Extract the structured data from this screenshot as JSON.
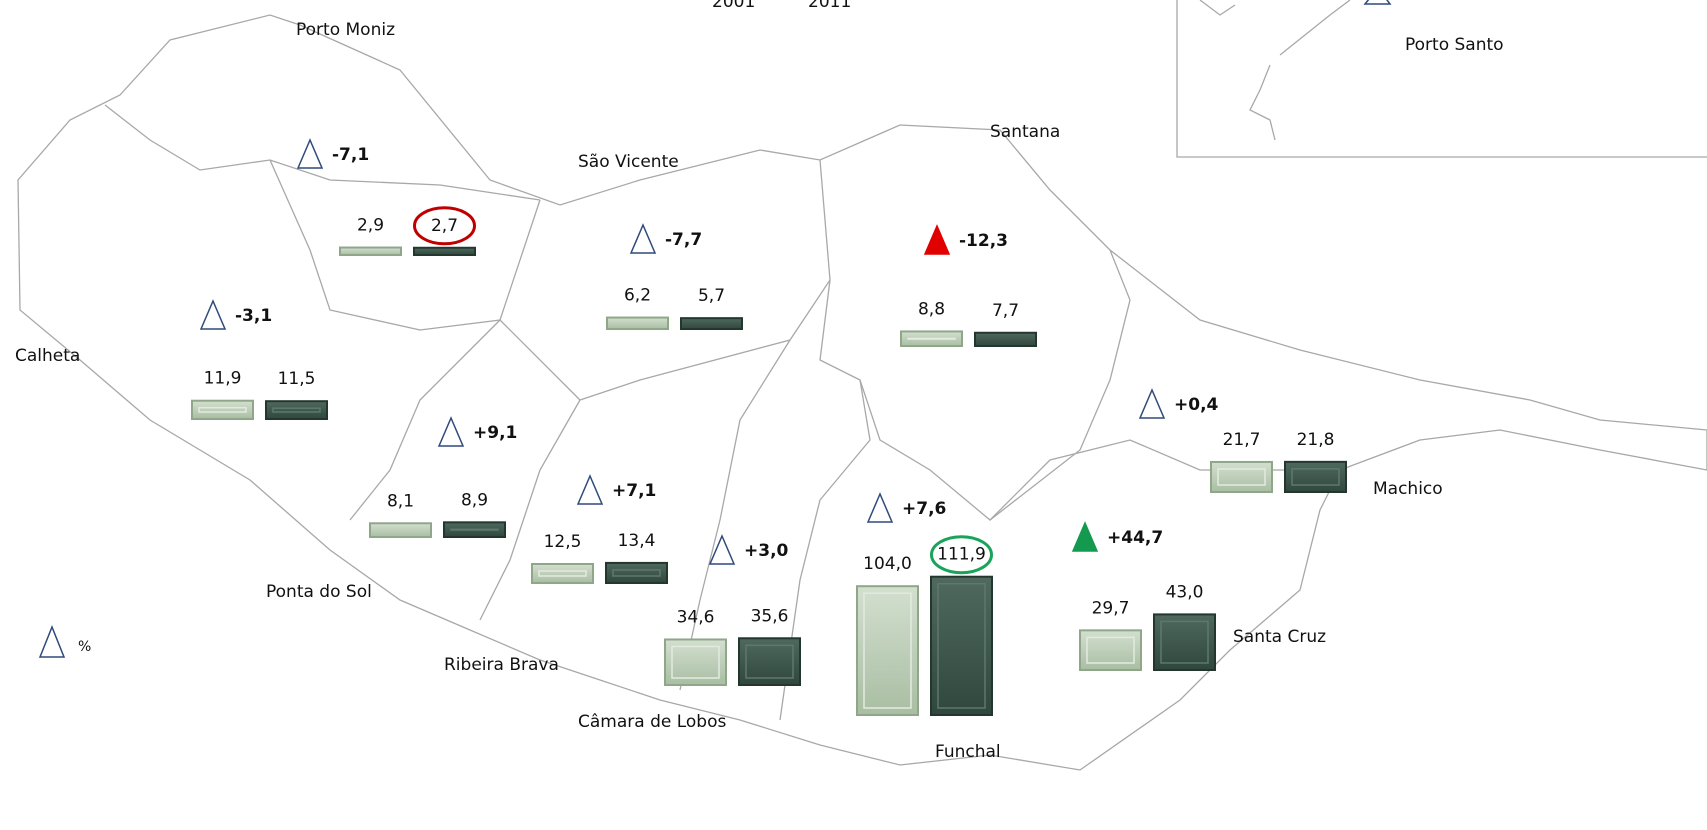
{
  "legend": {
    "years": [
      "2001",
      "2011"
    ],
    "unit": "%"
  },
  "inset": {
    "name": "Porto Santo"
  },
  "municipalities": [
    {
      "name": "Porto Moniz",
      "v2001": {
        "value": 2.9,
        "label": "2,9"
      },
      "v2011": {
        "value": 2.7,
        "label": "2,7"
      },
      "delta": {
        "value": -7.1,
        "label": "-7,1"
      },
      "delta_color": "none",
      "highlight": "#c00000"
    },
    {
      "name": "São Vicente",
      "v2001": {
        "value": 6.2,
        "label": "6,2"
      },
      "v2011": {
        "value": 5.7,
        "label": "5,7"
      },
      "delta": {
        "value": -7.7,
        "label": "-7,7"
      },
      "delta_color": "none"
    },
    {
      "name": "Santana",
      "v2001": {
        "value": 8.8,
        "label": "8,8"
      },
      "v2011": {
        "value": 7.7,
        "label": "7,7"
      },
      "delta": {
        "value": -12.3,
        "label": "-12,3"
      },
      "delta_color": "#e00000"
    },
    {
      "name": "Calheta",
      "v2001": {
        "value": 11.9,
        "label": "11,9"
      },
      "v2011": {
        "value": 11.5,
        "label": "11,5"
      },
      "delta": {
        "value": -3.1,
        "label": "-3,1"
      },
      "delta_color": "none"
    },
    {
      "name": "Ponta do Sol",
      "v2001": {
        "value": 8.1,
        "label": "8,1"
      },
      "v2011": {
        "value": 8.9,
        "label": "8,9"
      },
      "delta": {
        "value": 9.1,
        "label": "+9,1"
      },
      "delta_color": "none"
    },
    {
      "name": "Ribeira Brava",
      "v2001": {
        "value": 12.5,
        "label": "12,5"
      },
      "v2011": {
        "value": 13.4,
        "label": "13,4"
      },
      "delta": {
        "value": 7.1,
        "label": "+7,1"
      },
      "delta_color": "none"
    },
    {
      "name": "Câmara de Lobos",
      "v2001": {
        "value": 34.6,
        "label": "34,6"
      },
      "v2011": {
        "value": 35.6,
        "label": "35,6"
      },
      "delta": {
        "value": 3.0,
        "label": "+3,0"
      },
      "delta_color": "none"
    },
    {
      "name": "Funchal",
      "v2001": {
        "value": 104.0,
        "label": "104,0"
      },
      "v2011": {
        "value": 111.9,
        "label": "111,9"
      },
      "delta": {
        "value": 7.6,
        "label": "+7,6"
      },
      "delta_color": "none",
      "highlight": "#1aa35a"
    },
    {
      "name": "Santa Cruz",
      "v2001": {
        "value": 29.7,
        "label": "29,7"
      },
      "v2011": {
        "value": 43.0,
        "label": "43,0"
      },
      "delta": {
        "value": 44.7,
        "label": "+44,7"
      },
      "delta_color": "#139a4e"
    },
    {
      "name": "Machico",
      "v2001": {
        "value": 21.7,
        "label": "21,7"
      },
      "v2011": {
        "value": 21.8,
        "label": "21,8"
      },
      "delta": {
        "value": 0.4,
        "label": "+0,4"
      },
      "delta_color": "none"
    }
  ]
}
